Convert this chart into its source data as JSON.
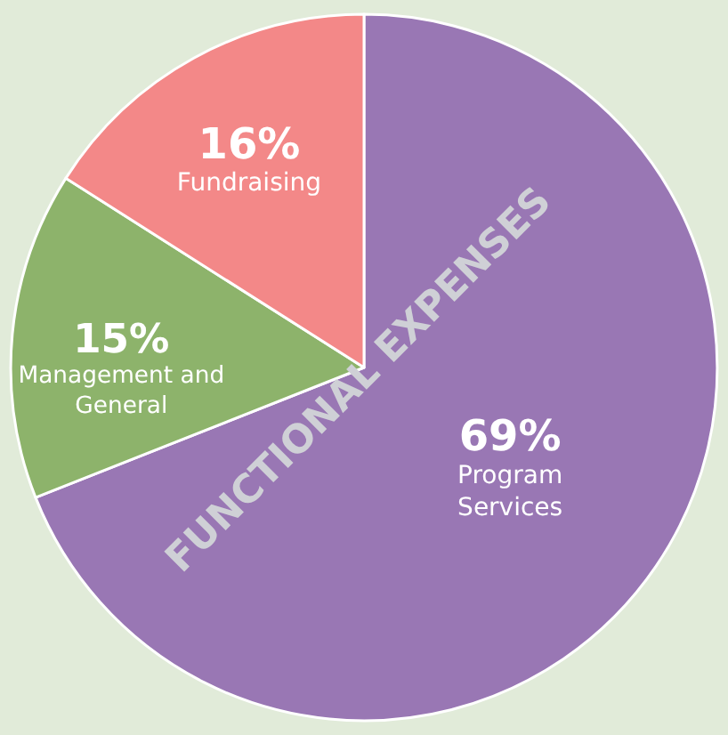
{
  "chart_data": {
    "type": "pie",
    "title": "FUNCTIONAL EXPENSES",
    "categories": [
      "Program Services",
      "Management and General",
      "Fundraising"
    ],
    "values": [
      69,
      15,
      16
    ],
    "colors": [
      "#9977b4",
      "#8db36b",
      "#f38888"
    ],
    "value_labels": [
      "69%",
      "15%",
      "16%"
    ],
    "legend": false
  }
}
